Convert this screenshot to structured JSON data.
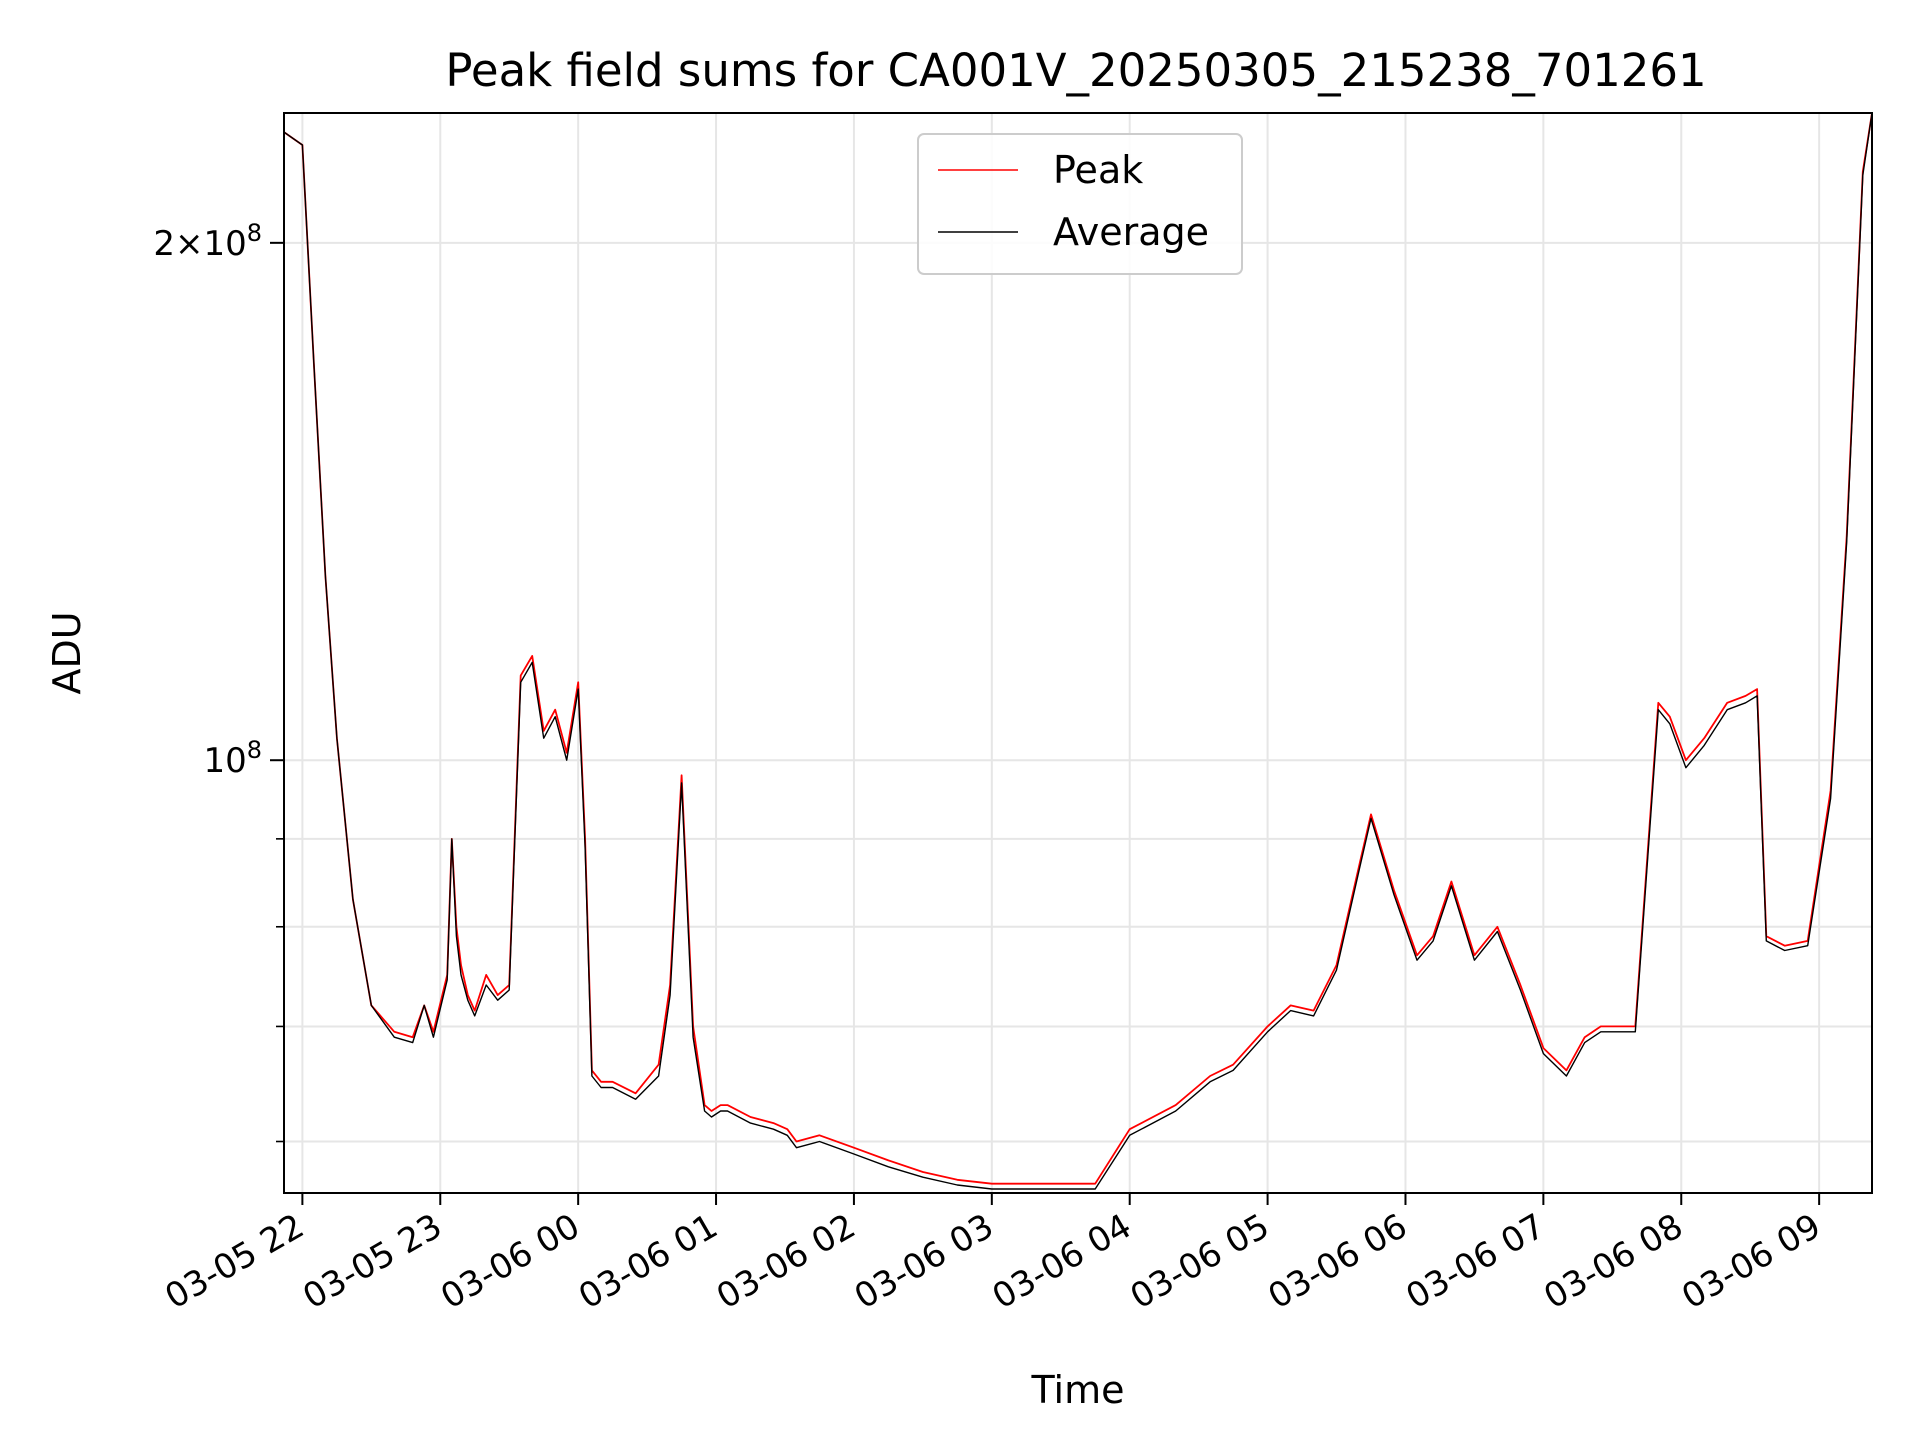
{
  "chart_data": {
    "type": "line",
    "title": "Peak field sums for CA001V_20250305_215238_701261",
    "xlabel": "Time",
    "ylabel": "ADU",
    "yscale": "log",
    "grid": true,
    "legend_position": "top-center",
    "xlim": [
      "2025-03-05 21:52",
      "2025-03-06 09:23"
    ],
    "ylim": [
      56000000,
      238000000
    ],
    "x_ticks": [
      "03-05 22",
      "03-05 23",
      "03-06 00",
      "03-06 01",
      "03-06 02",
      "03-06 03",
      "03-06 04",
      "03-06 05",
      "03-06 06",
      "03-06 07",
      "03-06 08",
      "03-06 09"
    ],
    "y_major_ticks": [
      {
        "value": 100000000,
        "label": "10^8"
      },
      {
        "value": 200000000,
        "label": "2×10^8"
      }
    ],
    "y_minor_ticks": [
      60000000,
      70000000,
      80000000,
      90000000
    ],
    "series": [
      {
        "name": "Peak",
        "color": "#ff0000",
        "x": [
          "2025-03-05 21:52",
          "2025-03-05 22:00",
          "2025-03-05 22:05",
          "2025-03-05 22:10",
          "2025-03-05 22:15",
          "2025-03-05 22:22",
          "2025-03-05 22:30",
          "2025-03-05 22:40",
          "2025-03-05 22:48",
          "2025-03-05 22:53",
          "2025-03-05 22:57",
          "2025-03-05 23:03",
          "2025-03-05 23:05",
          "2025-03-05 23:07",
          "2025-03-05 23:09",
          "2025-03-05 23:12",
          "2025-03-05 23:15",
          "2025-03-05 23:20",
          "2025-03-05 23:25",
          "2025-03-05 23:30",
          "2025-03-05 23:35",
          "2025-03-05 23:40",
          "2025-03-05 23:45",
          "2025-03-05 23:50",
          "2025-03-05 23:55",
          "2025-03-06 00:00",
          "2025-03-06 00:03",
          "2025-03-06 00:06",
          "2025-03-06 00:10",
          "2025-03-06 00:15",
          "2025-03-06 00:25",
          "2025-03-06 00:35",
          "2025-03-06 00:40",
          "2025-03-06 00:45",
          "2025-03-06 00:50",
          "2025-03-06 00:55",
          "2025-03-06 00:58",
          "2025-03-06 01:02",
          "2025-03-06 01:05",
          "2025-03-06 01:15",
          "2025-03-06 01:25",
          "2025-03-06 01:31",
          "2025-03-06 01:35",
          "2025-03-06 01:45",
          "2025-03-06 02:00",
          "2025-03-06 02:15",
          "2025-03-06 02:30",
          "2025-03-06 02:45",
          "2025-03-06 03:00",
          "2025-03-06 03:15",
          "2025-03-06 03:30",
          "2025-03-06 03:45",
          "2025-03-06 04:00",
          "2025-03-06 04:20",
          "2025-03-06 04:35",
          "2025-03-06 04:45",
          "2025-03-06 05:00",
          "2025-03-06 05:10",
          "2025-03-06 05:20",
          "2025-03-06 05:30",
          "2025-03-06 05:40",
          "2025-03-06 05:45",
          "2025-03-06 05:55",
          "2025-03-06 06:05",
          "2025-03-06 06:12",
          "2025-03-06 06:20",
          "2025-03-06 06:30",
          "2025-03-06 06:40",
          "2025-03-06 06:50",
          "2025-03-06 07:00",
          "2025-03-06 07:10",
          "2025-03-06 07:18",
          "2025-03-06 07:25",
          "2025-03-06 07:40",
          "2025-03-06 07:50",
          "2025-03-06 07:55",
          "2025-03-06 08:02",
          "2025-03-06 08:10",
          "2025-03-06 08:20",
          "2025-03-06 08:28",
          "2025-03-06 08:33",
          "2025-03-06 08:37",
          "2025-03-06 08:45",
          "2025-03-06 08:55",
          "2025-03-06 09:05",
          "2025-03-06 09:12",
          "2025-03-06 09:19",
          "2025-03-06 09:23"
        ],
        "values": [
          232000000,
          228000000,
          170000000,
          128000000,
          103000000,
          83000000,
          72000000,
          69500000,
          69000000,
          72000000,
          69500000,
          75000000,
          90000000,
          80000000,
          76000000,
          73000000,
          71500000,
          75000000,
          73000000,
          74000000,
          112000000,
          115000000,
          104000000,
          107000000,
          101000000,
          111000000,
          90000000,
          66000000,
          65000000,
          65000000,
          64000000,
          66500000,
          74000000,
          98000000,
          70000000,
          63000000,
          62500000,
          63000000,
          63000000,
          62000000,
          61500000,
          61000000,
          60000000,
          60500000,
          59500000,
          58500000,
          57600000,
          57000000,
          56700000,
          56700000,
          56700000,
          56700000,
          61000000,
          63000000,
          65500000,
          66500000,
          70000000,
          72000000,
          71500000,
          76000000,
          87000000,
          93000000,
          84000000,
          77000000,
          79000000,
          85000000,
          77000000,
          80000000,
          74000000,
          68000000,
          66000000,
          69000000,
          70000000,
          70000000,
          108000000,
          106000000,
          100000000,
          103000000,
          108000000,
          109000000,
          110000000,
          79000000,
          78000000,
          78500000,
          96000000,
          135000000,
          220000000,
          238000000
        ]
      },
      {
        "name": "Average",
        "color": "#000000",
        "x": [
          "2025-03-05 21:52",
          "2025-03-05 22:00",
          "2025-03-05 22:05",
          "2025-03-05 22:10",
          "2025-03-05 22:15",
          "2025-03-05 22:22",
          "2025-03-05 22:30",
          "2025-03-05 22:40",
          "2025-03-05 22:48",
          "2025-03-05 22:53",
          "2025-03-05 22:57",
          "2025-03-05 23:03",
          "2025-03-05 23:05",
          "2025-03-05 23:07",
          "2025-03-05 23:09",
          "2025-03-05 23:12",
          "2025-03-05 23:15",
          "2025-03-05 23:20",
          "2025-03-05 23:25",
          "2025-03-05 23:30",
          "2025-03-05 23:35",
          "2025-03-05 23:40",
          "2025-03-05 23:45",
          "2025-03-05 23:50",
          "2025-03-05 23:55",
          "2025-03-06 00:00",
          "2025-03-06 00:03",
          "2025-03-06 00:06",
          "2025-03-06 00:10",
          "2025-03-06 00:15",
          "2025-03-06 00:25",
          "2025-03-06 00:35",
          "2025-03-06 00:40",
          "2025-03-06 00:45",
          "2025-03-06 00:50",
          "2025-03-06 00:55",
          "2025-03-06 00:58",
          "2025-03-06 01:02",
          "2025-03-06 01:05",
          "2025-03-06 01:15",
          "2025-03-06 01:25",
          "2025-03-06 01:31",
          "2025-03-06 01:35",
          "2025-03-06 01:45",
          "2025-03-06 02:00",
          "2025-03-06 02:15",
          "2025-03-06 02:30",
          "2025-03-06 02:45",
          "2025-03-06 03:00",
          "2025-03-06 03:15",
          "2025-03-06 03:30",
          "2025-03-06 03:45",
          "2025-03-06 04:00",
          "2025-03-06 04:20",
          "2025-03-06 04:35",
          "2025-03-06 04:45",
          "2025-03-06 05:00",
          "2025-03-06 05:10",
          "2025-03-06 05:20",
          "2025-03-06 05:30",
          "2025-03-06 05:40",
          "2025-03-06 05:45",
          "2025-03-06 05:55",
          "2025-03-06 06:05",
          "2025-03-06 06:12",
          "2025-03-06 06:20",
          "2025-03-06 06:30",
          "2025-03-06 06:40",
          "2025-03-06 06:50",
          "2025-03-06 07:00",
          "2025-03-06 07:10",
          "2025-03-06 07:18",
          "2025-03-06 07:25",
          "2025-03-06 07:40",
          "2025-03-06 07:50",
          "2025-03-06 07:55",
          "2025-03-06 08:02",
          "2025-03-06 08:10",
          "2025-03-06 08:20",
          "2025-03-06 08:28",
          "2025-03-06 08:33",
          "2025-03-06 08:37",
          "2025-03-06 08:45",
          "2025-03-06 08:55",
          "2025-03-06 09:05",
          "2025-03-06 09:12",
          "2025-03-06 09:19",
          "2025-03-06 09:23"
        ],
        "values": [
          232000000,
          228000000,
          170000000,
          128000000,
          103000000,
          83000000,
          72000000,
          69000000,
          68500000,
          72000000,
          69000000,
          74500000,
          90000000,
          79000000,
          75000000,
          72500000,
          71000000,
          74000000,
          72500000,
          73500000,
          111000000,
          114000000,
          103000000,
          106000000,
          100000000,
          110000000,
          89000000,
          65500000,
          64500000,
          64500000,
          63500000,
          65500000,
          73000000,
          97000000,
          69000000,
          62500000,
          62000000,
          62500000,
          62500000,
          61500000,
          61000000,
          60500000,
          59500000,
          60000000,
          59000000,
          58000000,
          57200000,
          56600000,
          56300000,
          56300000,
          56300000,
          56300000,
          60500000,
          62500000,
          65000000,
          66000000,
          69500000,
          71500000,
          71000000,
          75500000,
          86500000,
          92500000,
          83500000,
          76500000,
          78500000,
          84500000,
          76500000,
          79500000,
          73500000,
          67500000,
          65500000,
          68500000,
          69500000,
          69500000,
          107000000,
          105000000,
          99000000,
          102000000,
          107000000,
          108000000,
          109000000,
          78500000,
          77500000,
          78000000,
          95000000,
          134000000,
          219000000,
          238000000
        ]
      }
    ]
  }
}
